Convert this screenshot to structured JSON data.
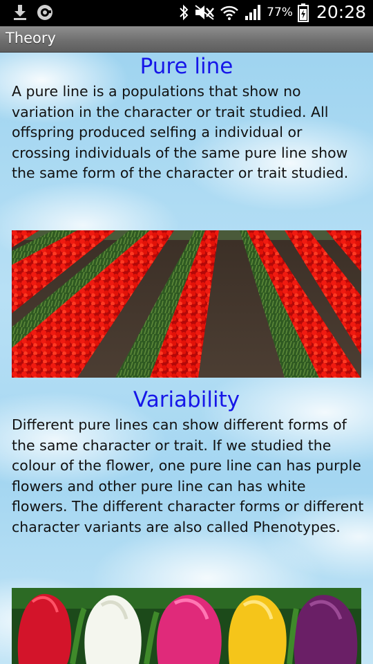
{
  "status_bar": {
    "icons_left": [
      "download-icon",
      "sync-icon"
    ],
    "icons_right": [
      "bluetooth-icon",
      "mute-icon",
      "wifi-icon",
      "signal-icon",
      "battery-icon"
    ],
    "battery_percent": "77%",
    "time": "20:28"
  },
  "action_bar": {
    "title": "Theory"
  },
  "sections": [
    {
      "heading": "Pure line",
      "text": "A pure line is a populations that show no variation in the character or trait studied. All offspring produced selfing a individual or crossing individuals of the same pure line show the same form of the character or trait studied."
    },
    {
      "heading": "Variability",
      "text": "Different pure lines can show different forms of the same character or trait. If we studied the colour of the flower, one pure line can has purple flowers and other pure line can has white flowers. The different character forms or different character variants are also called Phenotypes."
    }
  ],
  "colors": {
    "heading": "#1616e8",
    "tulip_red": "#e01010",
    "sky": "#a4d6f1"
  }
}
